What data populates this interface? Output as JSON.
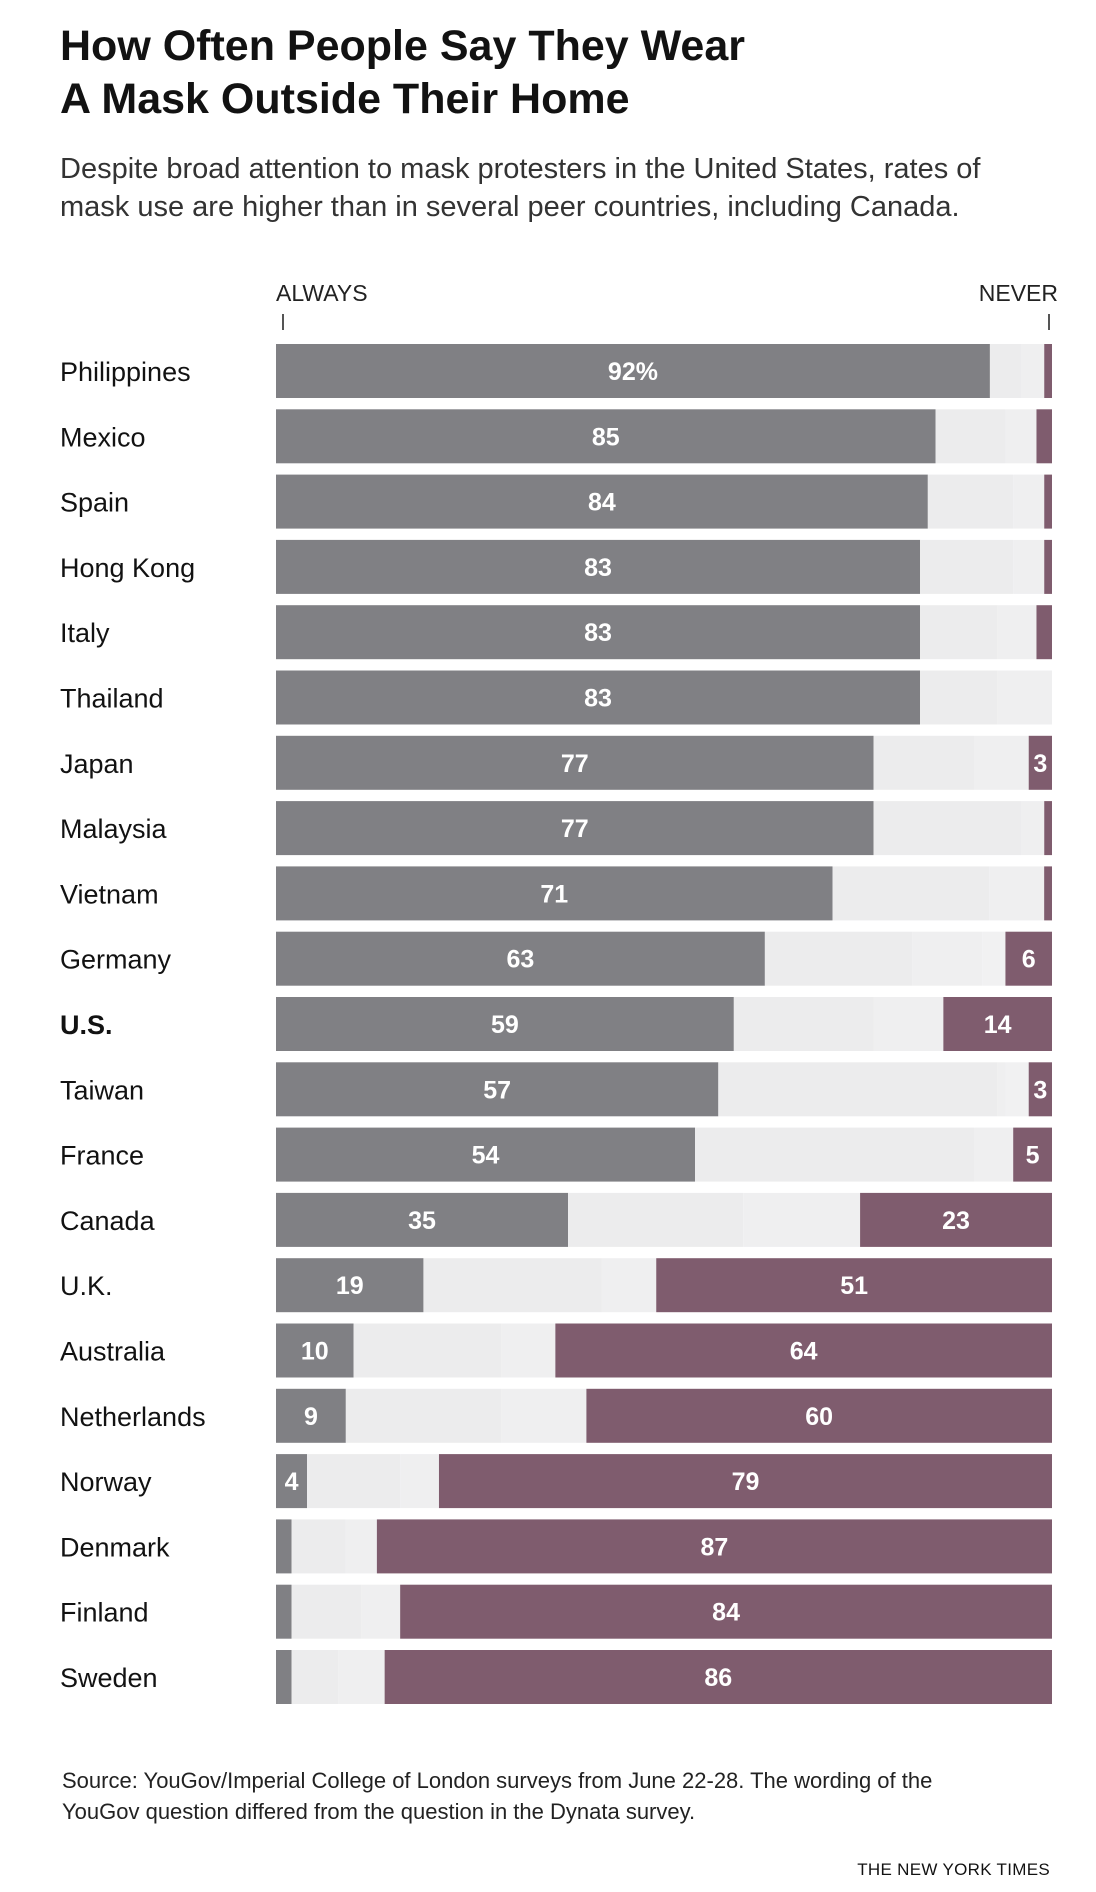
{
  "title_line1": "How Often People Say They Wear",
  "title_line2": "A Mask Outside Their Home",
  "subtitle_line1": "Despite broad attention to mask protesters in the United States, rates of",
  "subtitle_line2": "mask use are higher than in several peer countries, including Canada.",
  "axis": {
    "left_label": "ALWAYS",
    "right_label": "NEVER"
  },
  "source_line1": "Source: YouGov/Imperial College of London surveys from June 22-28. The wording of the",
  "source_line2": "YouGov question differed from the question in the Dynata survey.",
  "credit": "THE NEW YORK TIMES",
  "colors": {
    "always": "#808084",
    "middle": [
      "#ececed",
      "#efeff0",
      "#f1f1f2",
      "#e6e6e8"
    ],
    "never": "#7f5c6e"
  },
  "chart_data": {
    "type": "bar",
    "orientation": "horizontal",
    "stacked": true,
    "unit": "%",
    "xlim": [
      0,
      100
    ],
    "categories": [
      "Philippines",
      "Mexico",
      "Spain",
      "Hong Kong",
      "Italy",
      "Thailand",
      "Japan",
      "Malaysia",
      "Vietnam",
      "Germany",
      "U.S.",
      "Taiwan",
      "France",
      "Canada",
      "U.K.",
      "Australia",
      "Netherlands",
      "Norway",
      "Denmark",
      "Finland",
      "Sweden"
    ],
    "highlight": "U.S.",
    "series": [
      {
        "name": "ALWAYS",
        "values": [
          92,
          85,
          84,
          83,
          83,
          83,
          77,
          77,
          71,
          63,
          59,
          57,
          54,
          35,
          19,
          10,
          9,
          4,
          2,
          2,
          2
        ]
      },
      {
        "values": [
          4,
          9,
          11,
          12,
          10,
          10,
          13,
          19,
          20,
          19,
          18,
          36,
          36,
          21,
          23,
          19,
          20,
          12,
          7,
          9,
          6
        ]
      },
      {
        "values": [
          3,
          4,
          4,
          4,
          5,
          7,
          7,
          3,
          7,
          9,
          9,
          1,
          5,
          14,
          7,
          7,
          11,
          5,
          4,
          5,
          6
        ]
      },
      {
        "values": [
          0,
          0,
          0,
          0,
          0,
          0,
          0,
          0,
          0,
          3,
          0,
          3,
          0,
          0,
          0,
          0,
          0,
          0,
          0,
          0,
          0
        ]
      },
      {
        "name": "NEVER",
        "values": [
          1,
          2,
          1,
          1,
          2,
          0,
          3,
          1,
          1,
          6,
          14,
          3,
          5,
          23,
          51,
          64,
          60,
          79,
          87,
          84,
          86
        ]
      }
    ],
    "value_labels": {
      "always": [
        "92%",
        "85",
        "84",
        "83",
        "83",
        "83",
        "77",
        "77",
        "71",
        "63",
        "59",
        "57",
        "54",
        "35",
        "19",
        "10",
        "9",
        "4",
        "",
        "",
        ""
      ],
      "never": [
        "",
        "",
        "",
        "",
        "",
        "",
        "3",
        "",
        "",
        "6",
        "14",
        "3",
        "5",
        "23",
        "51",
        "64",
        "60",
        "79",
        "87",
        "84",
        "86"
      ]
    }
  }
}
